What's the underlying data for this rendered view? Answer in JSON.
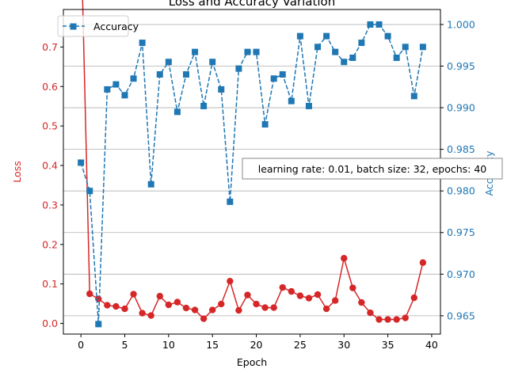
{
  "chart_data": {
    "type": "line",
    "title": "Loss and Accuracy Variation",
    "xlabel": "Epoch",
    "ylabel_left": "Loss",
    "ylabel_right": "Accuracy",
    "x": [
      0,
      1,
      2,
      3,
      4,
      5,
      6,
      7,
      8,
      9,
      10,
      11,
      12,
      13,
      14,
      15,
      16,
      17,
      18,
      19,
      20,
      21,
      22,
      23,
      24,
      25,
      26,
      27,
      28,
      29,
      30,
      31,
      32,
      33,
      34,
      35,
      36,
      37,
      38,
      39
    ],
    "xlim": [
      -2,
      41
    ],
    "xticks": [
      0,
      5,
      10,
      15,
      20,
      25,
      30,
      35,
      40
    ],
    "y_left_lim": [
      -0.027,
      0.795
    ],
    "y_left_ticks": [
      0.0,
      0.1,
      0.2,
      0.3,
      0.4,
      0.5,
      0.6,
      0.7
    ],
    "y_right_lim": [
      0.9628,
      1.0018
    ],
    "y_right_ticks": [
      0.965,
      0.97,
      0.975,
      0.98,
      0.985,
      0.99,
      0.995,
      1.0
    ],
    "grid": "horizontal, right axis",
    "legend_position": "top-left",
    "annotation": "learning rate: 0.01, batch size: 32, epochs: 40",
    "series": [
      {
        "name": "Loss",
        "axis": "left",
        "color": "#d62728",
        "marker": "circle",
        "linestyle": "solid",
        "values": [
          1.0,
          0.075,
          0.062,
          0.046,
          0.043,
          0.037,
          0.074,
          0.026,
          0.02,
          0.069,
          0.047,
          0.054,
          0.039,
          0.034,
          0.012,
          0.034,
          0.049,
          0.107,
          0.033,
          0.072,
          0.049,
          0.04,
          0.04,
          0.091,
          0.081,
          0.07,
          0.064,
          0.073,
          0.037,
          0.058,
          0.165,
          0.09,
          0.053,
          0.027,
          0.01,
          0.01,
          0.01,
          0.014,
          0.065,
          0.154
        ]
      },
      {
        "name": "Accuracy",
        "axis": "right",
        "color": "#1f77b4",
        "marker": "square",
        "linestyle": "dashed",
        "values": [
          0.9834,
          0.98,
          0.964,
          0.9922,
          0.9928,
          0.9915,
          0.9935,
          0.9978,
          0.9808,
          0.994,
          0.9955,
          0.9895,
          0.994,
          0.9967,
          0.9902,
          0.9955,
          0.9922,
          0.9787,
          0.9947,
          0.9967,
          0.9967,
          0.988,
          0.9935,
          0.994,
          0.9908,
          0.9986,
          0.9902,
          0.9973,
          0.9986,
          0.9967,
          0.9955,
          0.996,
          0.9978,
          1.0,
          1.0,
          0.9986,
          0.996,
          0.9973,
          0.9914,
          0.9973
        ]
      }
    ]
  }
}
